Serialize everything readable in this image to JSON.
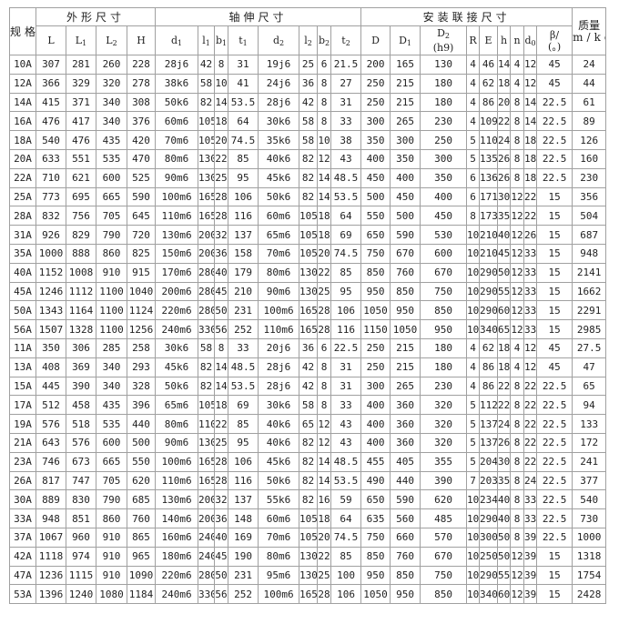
{
  "header": {
    "spec": "规格",
    "groups": [
      "外形尺寸",
      "轴伸尺寸",
      "安装联接尺寸"
    ],
    "mass": {
      "top": "质量",
      "unit": "m/kg"
    },
    "columns": [
      {
        "base": "L",
        "sub": ""
      },
      {
        "base": "L",
        "sub": "1"
      },
      {
        "base": "L",
        "sub": "2"
      },
      {
        "base": "H",
        "sub": ""
      },
      {
        "base": "d",
        "sub": "1"
      },
      {
        "base": "l",
        "sub": "1"
      },
      {
        "base": "b",
        "sub": "1"
      },
      {
        "base": "t",
        "sub": "1"
      },
      {
        "base": "d",
        "sub": "2"
      },
      {
        "base": "l",
        "sub": "2"
      },
      {
        "base": "b",
        "sub": "2"
      },
      {
        "base": "t",
        "sub": "2"
      },
      {
        "base": "D",
        "sub": ""
      },
      {
        "base": "D",
        "sub": "1"
      },
      {
        "base": "D",
        "sub": "2",
        "extra": "(h9)"
      },
      {
        "base": "R",
        "sub": ""
      },
      {
        "base": "E",
        "sub": ""
      },
      {
        "base": "h",
        "sub": ""
      },
      {
        "base": "n",
        "sub": ""
      },
      {
        "base": "d",
        "sub": "0"
      },
      {
        "base": "β/",
        "sub": "",
        "extra": "(。)"
      }
    ]
  },
  "rows": [
    [
      "10A",
      "307",
      "281",
      "260",
      "228",
      "28j6",
      "42",
      "8",
      "31",
      "19j6",
      "25",
      "6",
      "21.5",
      "200",
      "165",
      "130",
      "4",
      "46",
      "14",
      "4",
      "12",
      "45",
      "24"
    ],
    [
      "12A",
      "366",
      "329",
      "320",
      "278",
      "38k6",
      "58",
      "10",
      "41",
      "24j6",
      "36",
      "8",
      "27",
      "250",
      "215",
      "180",
      "4",
      "62",
      "18",
      "4",
      "12",
      "45",
      "44"
    ],
    [
      "14A",
      "415",
      "371",
      "340",
      "308",
      "50k6",
      "82",
      "14",
      "53.5",
      "28j6",
      "42",
      "8",
      "31",
      "250",
      "215",
      "180",
      "4",
      "86",
      "20",
      "8",
      "14",
      "22.5",
      "61"
    ],
    [
      "16A",
      "476",
      "417",
      "340",
      "376",
      "60m6",
      "105",
      "18",
      "64",
      "30k6",
      "58",
      "8",
      "33",
      "300",
      "265",
      "230",
      "4",
      "109",
      "22",
      "8",
      "14",
      "22.5",
      "89"
    ],
    [
      "18A",
      "540",
      "476",
      "435",
      "420",
      "70m6",
      "105",
      "20",
      "74.5",
      "35k6",
      "58",
      "10",
      "38",
      "350",
      "300",
      "250",
      "5",
      "110",
      "24",
      "8",
      "18",
      "22.5",
      "126"
    ],
    [
      "20A",
      "633",
      "551",
      "535",
      "470",
      "80m6",
      "130",
      "22",
      "85",
      "40k6",
      "82",
      "12",
      "43",
      "400",
      "350",
      "300",
      "5",
      "135",
      "26",
      "8",
      "18",
      "22.5",
      "160"
    ],
    [
      "22A",
      "710",
      "621",
      "600",
      "525",
      "90m6",
      "130",
      "25",
      "95",
      "45k6",
      "82",
      "14",
      "48.5",
      "450",
      "400",
      "350",
      "6",
      "136",
      "26",
      "8",
      "18",
      "22.5",
      "230"
    ],
    [
      "25A",
      "773",
      "695",
      "665",
      "590",
      "100m6",
      "165",
      "28",
      "106",
      "50k6",
      "82",
      "14",
      "53.5",
      "500",
      "450",
      "400",
      "6",
      "171",
      "30",
      "12",
      "22",
      "15",
      "356"
    ],
    [
      "28A",
      "832",
      "756",
      "705",
      "645",
      "110m6",
      "165",
      "28",
      "116",
      "60m6",
      "105",
      "18",
      "64",
      "550",
      "500",
      "450",
      "8",
      "173",
      "35",
      "12",
      "22",
      "15",
      "504"
    ],
    [
      "31A",
      "926",
      "829",
      "790",
      "720",
      "130m6",
      "200",
      "32",
      "137",
      "65m6",
      "105",
      "18",
      "69",
      "650",
      "590",
      "530",
      "10",
      "210",
      "40",
      "12",
      "26",
      "15",
      "687"
    ],
    [
      "35A",
      "1000",
      "888",
      "860",
      "825",
      "150m6",
      "200",
      "36",
      "158",
      "70m6",
      "105",
      "20",
      "74.5",
      "750",
      "670",
      "600",
      "10",
      "210",
      "45",
      "12",
      "33",
      "15",
      "948"
    ],
    [
      "40A",
      "1152",
      "1008",
      "910",
      "915",
      "170m6",
      "280",
      "40",
      "179",
      "80m6",
      "130",
      "22",
      "85",
      "850",
      "760",
      "670",
      "10",
      "290",
      "50",
      "12",
      "33",
      "15",
      "2141"
    ],
    [
      "45A",
      "1246",
      "1112",
      "1100",
      "1040",
      "200m6",
      "280",
      "45",
      "210",
      "90m6",
      "130",
      "25",
      "95",
      "950",
      "850",
      "750",
      "10",
      "290",
      "55",
      "12",
      "33",
      "15",
      "1662"
    ],
    [
      "50A",
      "1343",
      "1164",
      "1100",
      "1124",
      "220m6",
      "280",
      "50",
      "231",
      "100m6",
      "165",
      "28",
      "106",
      "1050",
      "950",
      "850",
      "10",
      "290",
      "60",
      "12",
      "33",
      "15",
      "2291"
    ],
    [
      "56A",
      "1507",
      "1328",
      "1100",
      "1256",
      "240m6",
      "330",
      "56",
      "252",
      "110m6",
      "165",
      "28",
      "116",
      "1150",
      "1050",
      "950",
      "10",
      "340",
      "65",
      "12",
      "33",
      "15",
      "2985"
    ],
    [
      "11A",
      "350",
      "306",
      "285",
      "258",
      "30k6",
      "58",
      "8",
      "33",
      "20j6",
      "36",
      "6",
      "22.5",
      "250",
      "215",
      "180",
      "4",
      "62",
      "18",
      "4",
      "12",
      "45",
      "27.5"
    ],
    [
      "13A",
      "408",
      "369",
      "340",
      "293",
      "45k6",
      "82",
      "14",
      "48.5",
      "28j6",
      "42",
      "8",
      "31",
      "250",
      "215",
      "180",
      "4",
      "86",
      "18",
      "4",
      "12",
      "45",
      "47"
    ],
    [
      "15A",
      "445",
      "390",
      "340",
      "328",
      "50k6",
      "82",
      "14",
      "53.5",
      "28j6",
      "42",
      "8",
      "31",
      "300",
      "265",
      "230",
      "4",
      "86",
      "22",
      "8",
      "22",
      "22.5",
      "65"
    ],
    [
      "17A",
      "512",
      "458",
      "435",
      "396",
      "65m6",
      "105",
      "18",
      "69",
      "30k6",
      "58",
      "8",
      "33",
      "400",
      "360",
      "320",
      "5",
      "112",
      "22",
      "8",
      "22",
      "22.5",
      "94"
    ],
    [
      "19A",
      "576",
      "518",
      "535",
      "440",
      "80m6",
      "110",
      "22",
      "85",
      "40k6",
      "65",
      "12",
      "43",
      "400",
      "360",
      "320",
      "5",
      "137",
      "24",
      "8",
      "22",
      "22.5",
      "133"
    ],
    [
      "21A",
      "643",
      "576",
      "600",
      "500",
      "90m6",
      "130",
      "25",
      "95",
      "40k6",
      "82",
      "12",
      "43",
      "400",
      "360",
      "320",
      "5",
      "137",
      "26",
      "8",
      "22",
      "22.5",
      "172"
    ],
    [
      "23A",
      "746",
      "673",
      "665",
      "550",
      "100m6",
      "165",
      "28",
      "106",
      "45k6",
      "82",
      "14",
      "48.5",
      "455",
      "405",
      "355",
      "5",
      "204",
      "30",
      "8",
      "22",
      "22.5",
      "241"
    ],
    [
      "26A",
      "817",
      "747",
      "705",
      "620",
      "110m6",
      "165",
      "28",
      "116",
      "50k6",
      "82",
      "14",
      "53.5",
      "490",
      "440",
      "390",
      "7",
      "203",
      "35",
      "8",
      "24",
      "22.5",
      "377"
    ],
    [
      "30A",
      "889",
      "830",
      "790",
      "685",
      "130m6",
      "200",
      "32",
      "137",
      "55k6",
      "82",
      "16",
      "59",
      "650",
      "590",
      "620",
      "10",
      "234",
      "40",
      "8",
      "33",
      "22.5",
      "540"
    ],
    [
      "33A",
      "948",
      "851",
      "860",
      "760",
      "140m6",
      "200",
      "36",
      "148",
      "60m6",
      "105",
      "18",
      "64",
      "635",
      "560",
      "485",
      "10",
      "290",
      "40",
      "8",
      "33",
      "22.5",
      "730"
    ],
    [
      "37A",
      "1067",
      "960",
      "910",
      "865",
      "160m6",
      "240",
      "40",
      "169",
      "70m6",
      "105",
      "20",
      "74.5",
      "750",
      "660",
      "570",
      "10",
      "300",
      "50",
      "8",
      "39",
      "22.5",
      "1000"
    ],
    [
      "42A",
      "1118",
      "974",
      "910",
      "965",
      "180m6",
      "240",
      "45",
      "190",
      "80m6",
      "130",
      "22",
      "85",
      "850",
      "760",
      "670",
      "10",
      "250",
      "50",
      "12",
      "39",
      "15",
      "1318"
    ],
    [
      "47A",
      "1236",
      "1115",
      "910",
      "1090",
      "220m6",
      "280",
      "50",
      "231",
      "95m6",
      "130",
      "25",
      "100",
      "950",
      "850",
      "750",
      "10",
      "290",
      "55",
      "12",
      "39",
      "15",
      "1754"
    ],
    [
      "53A",
      "1396",
      "1240",
      "1080",
      "1184",
      "240m6",
      "330",
      "56",
      "252",
      "100m6",
      "165",
      "28",
      "106",
      "1050",
      "950",
      "850",
      "10",
      "340",
      "60",
      "12",
      "39",
      "15",
      "2428"
    ]
  ]
}
